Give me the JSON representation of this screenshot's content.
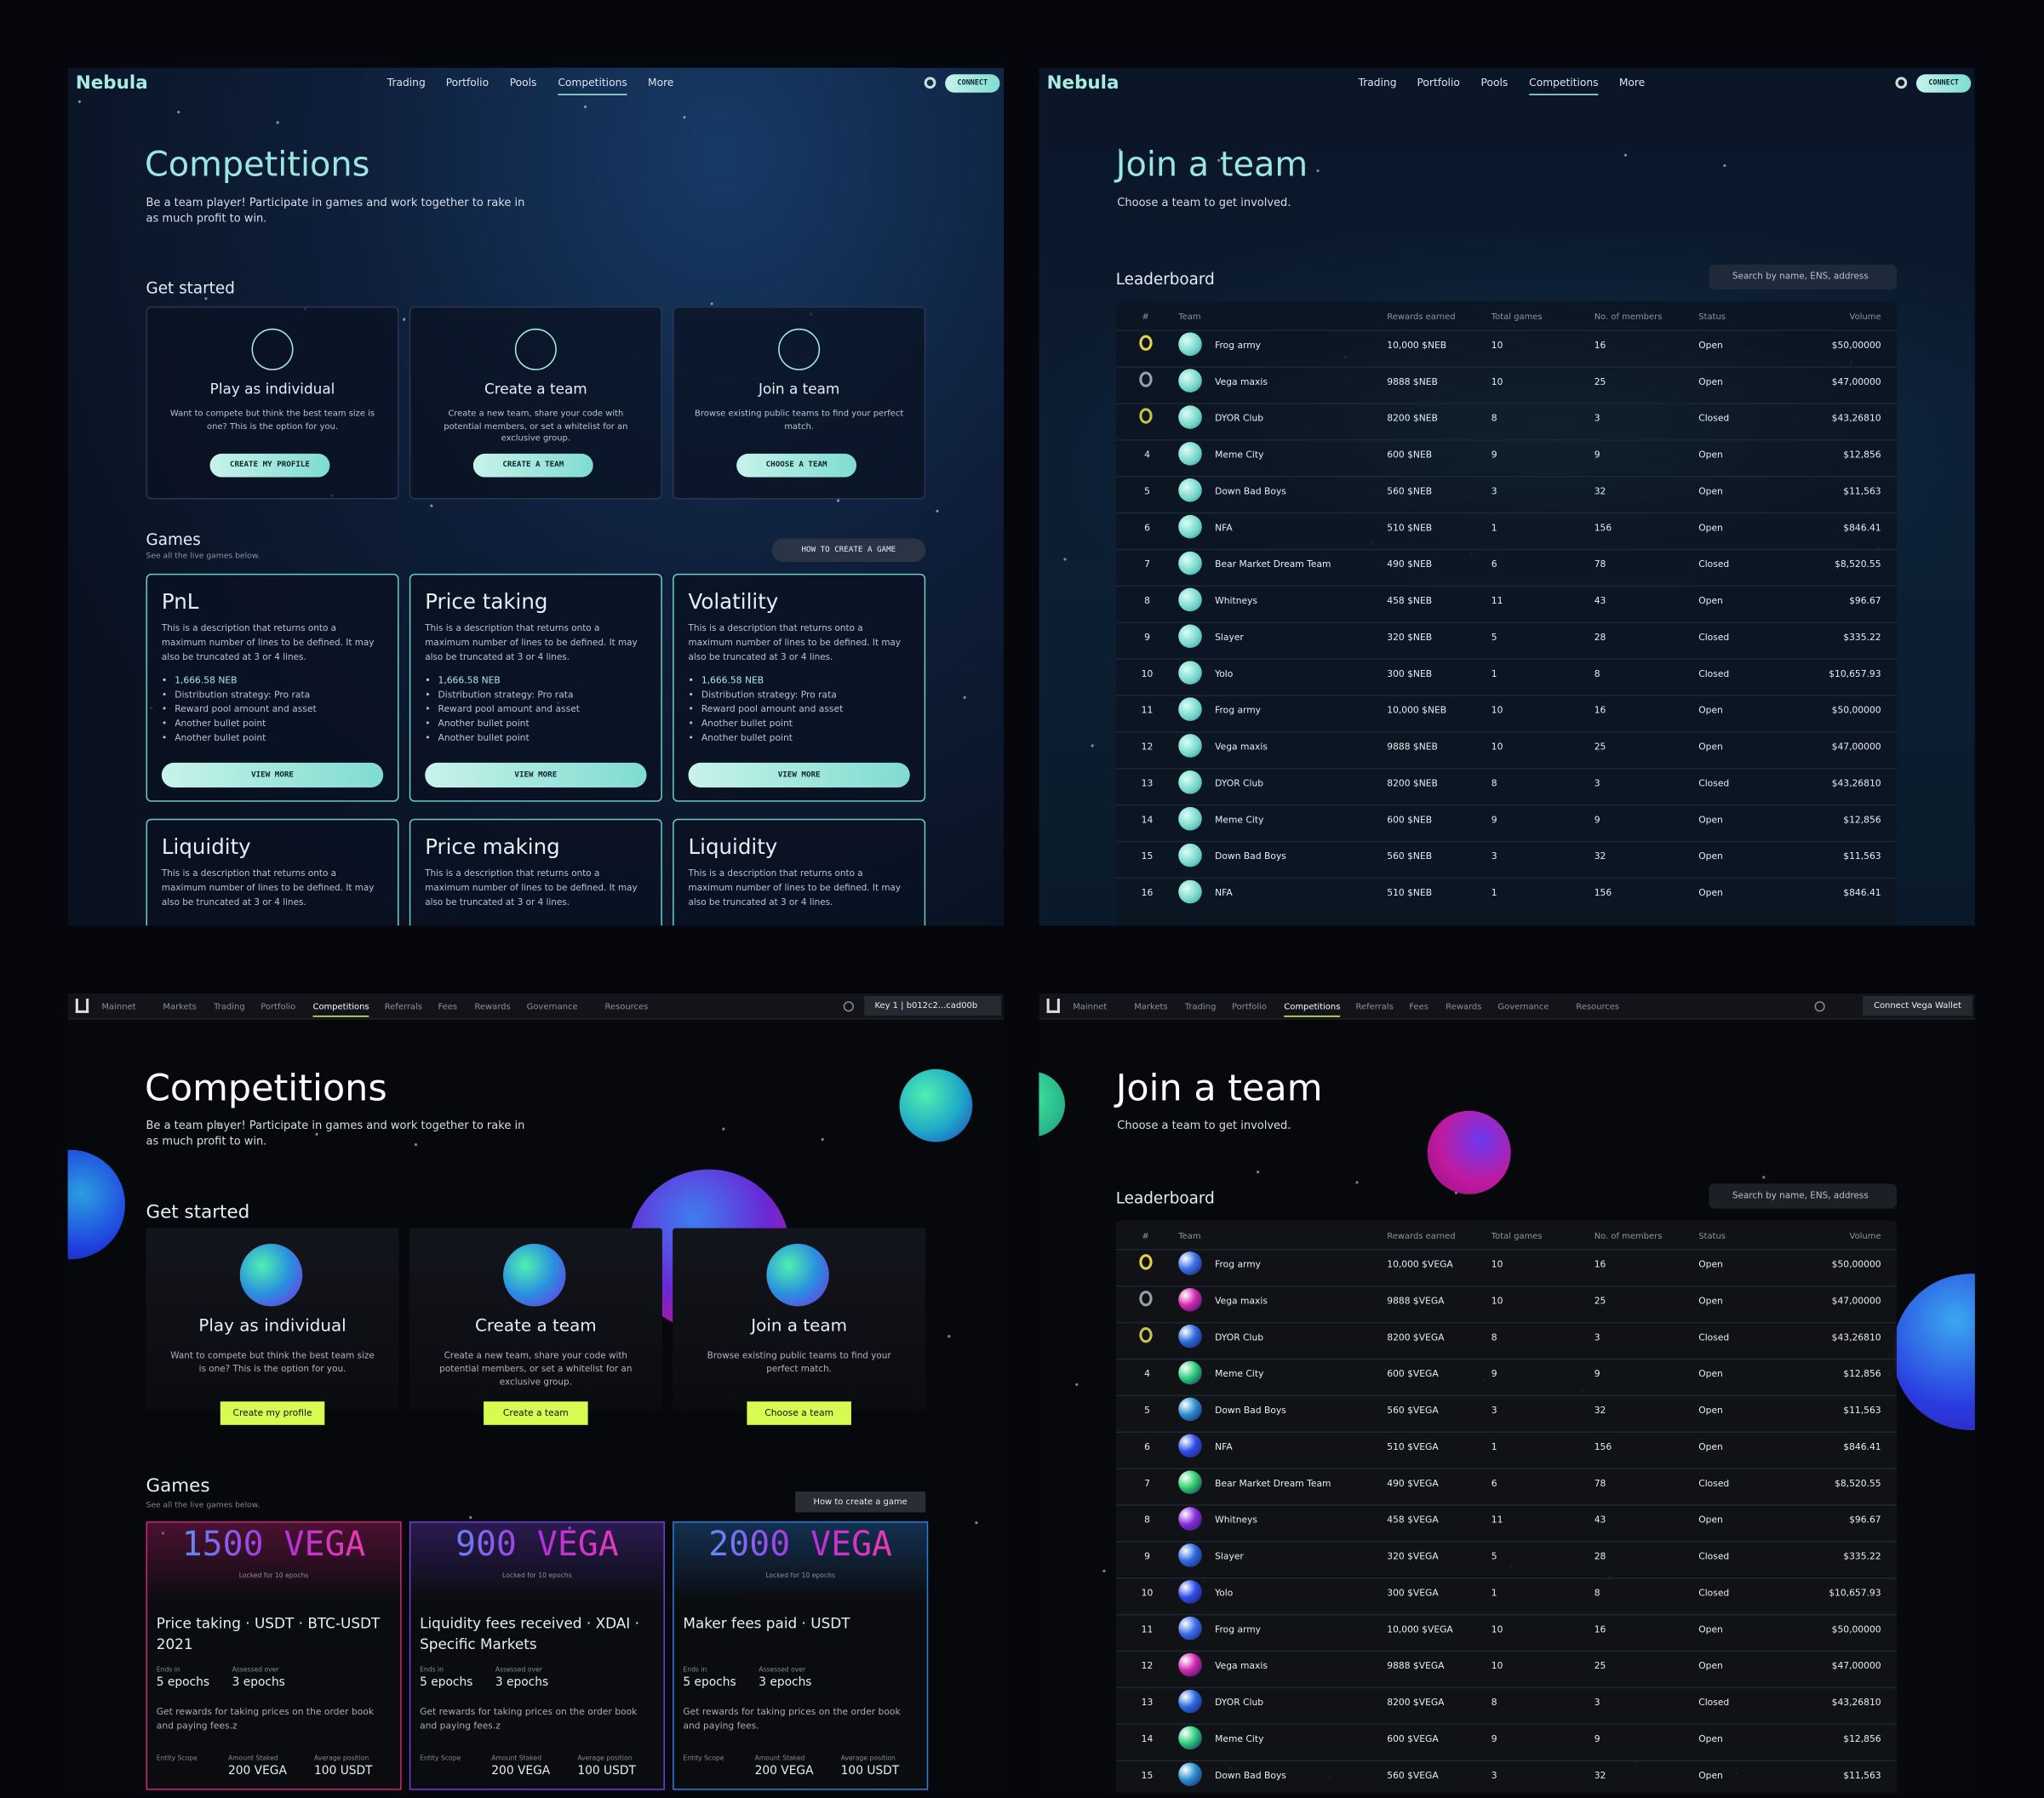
{
  "panels": [
    {
      "brand": "Nebula",
      "nav": [
        "Trading",
        "Portfolio",
        "Pools",
        "Competitions",
        "More"
      ],
      "nav_active": 3,
      "connect": "CONNECT",
      "title": "Competitions",
      "subtitle": "Be a team player! Participate in games and work together to rake in as much profit to win.",
      "get_started": "Get started",
      "cards": [
        {
          "title": "Play as individual",
          "text": "Want to compete but think the best team size is one? This is the option for you.",
          "button": "CREATE MY PROFILE"
        },
        {
          "title": "Create a team",
          "text": "Create a new team, share your code with potential members, or set a whitelist for an exclusive group.",
          "button": "CREATE A TEAM"
        },
        {
          "title": "Join a team",
          "text": "Browse existing public teams to find your perfect match.",
          "button": "CHOOSE A TEAM"
        }
      ],
      "games_title": "Games",
      "games_subtitle": "See all the live games below.",
      "games_button": "HOW TO CREATE A GAME",
      "games": [
        {
          "title": "PnL",
          "text": "This is a description that returns onto a maximum number of lines to be defined. It may also be truncated at 3 or 4 lines.",
          "bullets": [
            "1,666.58 NEB",
            "Distribution strategy: Pro rata",
            "Reward pool amount and asset",
            "Another bullet point",
            "Another bullet point"
          ],
          "button": "VIEW MORE"
        },
        {
          "title": "Price taking",
          "text": "This is a description that returns onto a maximum number of lines to be defined. It may also be truncated at 3 or 4 lines.",
          "bullets": [
            "1,666.58 NEB",
            "Distribution strategy: Pro rata",
            "Reward pool amount and asset",
            "Another bullet point",
            "Another bullet point"
          ],
          "button": "VIEW MORE"
        },
        {
          "title": "Volatility",
          "text": "This is a description that returns onto a maximum number of lines to be defined. It may also be truncated at 3 or 4 lines.",
          "bullets": [
            "1,666.58 NEB",
            "Distribution strategy: Pro rata",
            "Reward pool amount and asset",
            "Another bullet point",
            "Another bullet point"
          ],
          "button": "VIEW MORE"
        },
        {
          "title": "Liquidity",
          "text": "This is a description that returns onto a maximum number of lines to be defined. It may also be truncated at 3 or 4 lines."
        },
        {
          "title": "Price making",
          "text": "This is a description that returns onto a maximum number of lines to be defined. It may also be truncated at 3 or 4 lines."
        },
        {
          "title": "Liquidity",
          "text": "This is a description that returns onto a maximum number of lines to be defined. It may also be truncated at 3 or 4 lines."
        }
      ]
    },
    {
      "brand": "Nebula",
      "nav": [
        "Trading",
        "Portfolio",
        "Pools",
        "Competitions",
        "More"
      ],
      "nav_active": 3,
      "connect": "CONNECT",
      "title": "Join a team",
      "subtitle": "Choose a team to get involved.",
      "leaderboard": "Leaderboard",
      "search": "Search by name, ENS, address",
      "columns": [
        "#",
        "Team",
        "Rewards earned",
        "Total games",
        "No. of members",
        "Status",
        "Volume"
      ],
      "rows": [
        [
          null,
          "Frog army",
          "10,000 $NEB",
          "10",
          "16",
          "Open",
          "$50,00000"
        ],
        [
          null,
          "Vega maxis",
          "9888 $NEB",
          "10",
          "25",
          "Open",
          "$47,00000"
        ],
        [
          null,
          "DYOR Club",
          "8200 $NEB",
          "8",
          "3",
          "Closed",
          "$43,26810"
        ],
        [
          "4",
          "Meme City",
          "600 $NEB",
          "9",
          "9",
          "Open",
          "$12,856"
        ],
        [
          "5",
          "Down Bad Boys",
          "560 $NEB",
          "3",
          "32",
          "Open",
          "$11,563"
        ],
        [
          "6",
          "NFA",
          "510 $NEB",
          "1",
          "156",
          "Open",
          "$846.41"
        ],
        [
          "7",
          "Bear Market Dream Team",
          "490 $NEB",
          "6",
          "78",
          "Closed",
          "$8,520.55"
        ],
        [
          "8",
          "Whitneys",
          "458 $NEB",
          "11",
          "43",
          "Open",
          "$96.67"
        ],
        [
          "9",
          "Slayer",
          "320 $NEB",
          "5",
          "28",
          "Closed",
          "$335.22"
        ],
        [
          "10",
          "Yolo",
          "300 $NEB",
          "1",
          "8",
          "Closed",
          "$10,657.93"
        ],
        [
          "11",
          "Frog army",
          "10,000 $NEB",
          "10",
          "16",
          "Open",
          "$50,00000"
        ],
        [
          "12",
          "Vega maxis",
          "9888 $NEB",
          "10",
          "25",
          "Open",
          "$47,00000"
        ],
        [
          "13",
          "DYOR Club",
          "8200 $NEB",
          "8",
          "3",
          "Closed",
          "$43,26810"
        ],
        [
          "14",
          "Meme City",
          "600 $NEB",
          "9",
          "9",
          "Open",
          "$12,856"
        ],
        [
          "15",
          "Down Bad Boys",
          "560 $NEB",
          "3",
          "32",
          "Open",
          "$11,563"
        ],
        [
          "16",
          "NFA",
          "510 $NEB",
          "1",
          "156",
          "Open",
          "$846.41"
        ]
      ]
    },
    {
      "nav": [
        "Mainnet",
        "Markets",
        "Trading",
        "Portfolio",
        "Competitions",
        "Referrals",
        "Fees",
        "Rewards",
        "Governance",
        "Resources"
      ],
      "nav_active": 4,
      "key": "Key 1 | b012c2...cad00b",
      "title": "Competitions",
      "subtitle": "Be a team player! Participate in games and work together to rake in as much profit to win.",
      "get_started": "Get started",
      "cards": [
        {
          "title": "Play as individual",
          "text": "Want to compete but think the best team size is one? This is the option for you.",
          "button": "Create my profile"
        },
        {
          "title": "Create a team",
          "text": "Create a new team, share your code with potential members, or set a whitelist for an exclusive group.",
          "button": "Create a team"
        },
        {
          "title": "Join a team",
          "text": "Browse existing public teams to find your perfect match.",
          "button": "Choose a team"
        }
      ],
      "games_title": "Games",
      "games_subtitle": "See all the live games below.",
      "games_button": "How to create a game",
      "labels": {
        "ends": "Ends in",
        "assessed": "Assessed over",
        "scope": "Entity Scope",
        "staked": "Amount Staked",
        "position": "Average position"
      },
      "games": [
        {
          "amount": "1500 VEGA",
          "locked": "Locked for 10 epochs",
          "title": "Price taking · USDT · BTC-USDT 2021",
          "ends": "5 epochs",
          "assessed": "3 epochs",
          "text": "Get rewards for taking prices on the order book and paying fees.z",
          "staked": "200 VEGA",
          "position": "100 USDT",
          "color": "#d2237c"
        },
        {
          "amount": "900 VEGA",
          "locked": "Locked for 10 epochs",
          "title": "Liquidity fees received · XDAI · Specific Markets",
          "ends": "5 epochs",
          "assessed": "3 epochs",
          "text": "Get rewards for taking prices on the order book and paying fees.z",
          "staked": "200 VEGA",
          "position": "100 USDT",
          "color": "#7040d8"
        },
        {
          "amount": "2000 VEGA",
          "locked": "Locked for 10 epochs",
          "title": "Maker fees paid · USDT",
          "ends": "5 epochs",
          "assessed": "3 epochs",
          "text": "Get rewards for taking prices on the order book and paying fees.",
          "staked": "200 VEGA",
          "position": "100 USDT",
          "color": "#2a7fd8"
        }
      ]
    },
    {
      "nav": [
        "Mainnet",
        "Markets",
        "Trading",
        "Portfolio",
        "Competitions",
        "Referrals",
        "Fees",
        "Rewards",
        "Governance",
        "Resources"
      ],
      "nav_active": 4,
      "connect": "Connect Vega Wallet",
      "title": "Join a team",
      "subtitle": "Choose a team to get involved.",
      "leaderboard": "Leaderboard",
      "search": "Search by name, ENS, address",
      "columns": [
        "#",
        "Team",
        "Rewards earned",
        "Total games",
        "No. of members",
        "Status",
        "Volume"
      ],
      "rows": [
        [
          null,
          "Frog army",
          "10,000 $VEGA",
          "10",
          "16",
          "Open",
          "$50,00000"
        ],
        [
          null,
          "Vega maxis",
          "9888 $VEGA",
          "10",
          "25",
          "Open",
          "$47,00000"
        ],
        [
          null,
          "DYOR Club",
          "8200 $VEGA",
          "8",
          "3",
          "Closed",
          "$43,26810"
        ],
        [
          "4",
          "Meme City",
          "600 $VEGA",
          "9",
          "9",
          "Open",
          "$12,856"
        ],
        [
          "5",
          "Down Bad Boys",
          "560 $VEGA",
          "3",
          "32",
          "Open",
          "$11,563"
        ],
        [
          "6",
          "NFA",
          "510 $VEGA",
          "1",
          "156",
          "Open",
          "$846.41"
        ],
        [
          "7",
          "Bear Market Dream Team",
          "490 $VEGA",
          "6",
          "78",
          "Closed",
          "$8,520.55"
        ],
        [
          "8",
          "Whitneys",
          "458 $VEGA",
          "11",
          "43",
          "Open",
          "$96.67"
        ],
        [
          "9",
          "Slayer",
          "320 $VEGA",
          "5",
          "28",
          "Closed",
          "$335.22"
        ],
        [
          "10",
          "Yolo",
          "300 $VEGA",
          "1",
          "8",
          "Closed",
          "$10,657.93"
        ],
        [
          "11",
          "Frog army",
          "10,000 $VEGA",
          "10",
          "16",
          "Open",
          "$50,00000"
        ],
        [
          "12",
          "Vega maxis",
          "9888 $VEGA",
          "10",
          "25",
          "Open",
          "$47,00000"
        ],
        [
          "13",
          "DYOR Club",
          "8200 $VEGA",
          "8",
          "3",
          "Closed",
          "$43,26810"
        ],
        [
          "14",
          "Meme City",
          "600 $VEGA",
          "9",
          "9",
          "Open",
          "$12,856"
        ],
        [
          "15",
          "Down Bad Boys",
          "560 $VEGA",
          "3",
          "32",
          "Open",
          "$11,563"
        ]
      ]
    }
  ]
}
